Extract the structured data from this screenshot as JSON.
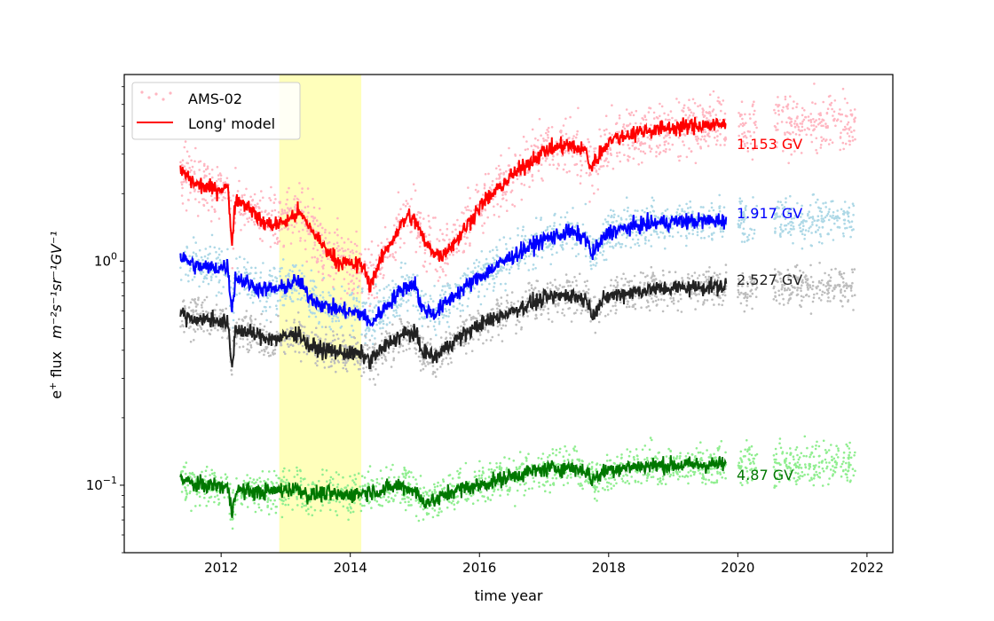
{
  "chart_data": {
    "type": "scatter",
    "xlabel": "time year",
    "ylabel_prefix": "e",
    "ylabel_sup": "+",
    "ylabel_flux": " flux",
    "ylabel_units": "m⁻²s⁻¹sr⁻¹GV⁻¹",
    "x_range": [
      2010.5,
      2022.4
    ],
    "y_range": [
      0.05,
      6.8
    ],
    "y_scale": "log",
    "x_ticks": [
      "2012",
      "2014",
      "2016",
      "2018",
      "2020",
      "2022"
    ],
    "y_ticks": [
      {
        "base": "10",
        "exp": "0",
        "value": 1.0
      },
      {
        "base": "10",
        "exp": "−1",
        "value": 0.1
      }
    ],
    "shaded_region": {
      "x_start": 2012.9,
      "x_end": 2014.17,
      "color": "#ffffbb"
    },
    "legend": {
      "position": "top-left",
      "entries": [
        {
          "label": "AMS-02",
          "kind": "points",
          "color": "#ffb6c1"
        },
        {
          "label": "Long' model",
          "kind": "line",
          "color": "#ff0000"
        }
      ]
    },
    "series": [
      {
        "label": "1.153 GV",
        "point_color": "#ffb6c1",
        "line_color": "#ff0000",
        "label_color": "#ff0000",
        "scatter": 0.13,
        "model": [
          [
            2011.37,
            2.55
          ],
          [
            2011.6,
            2.2
          ],
          [
            2011.9,
            2.1
          ],
          [
            2012.1,
            2.15
          ],
          [
            2012.17,
            1.2
          ],
          [
            2012.22,
            1.9
          ],
          [
            2012.45,
            1.75
          ],
          [
            2012.6,
            1.5
          ],
          [
            2012.8,
            1.45
          ],
          [
            2013.0,
            1.5
          ],
          [
            2013.2,
            1.65
          ],
          [
            2013.35,
            1.45
          ],
          [
            2013.55,
            1.2
          ],
          [
            2013.8,
            1.0
          ],
          [
            2014.0,
            0.97
          ],
          [
            2014.2,
            0.95
          ],
          [
            2014.3,
            0.78
          ],
          [
            2014.5,
            1.05
          ],
          [
            2014.75,
            1.4
          ],
          [
            2014.9,
            1.6
          ],
          [
            2015.05,
            1.45
          ],
          [
            2015.15,
            1.2
          ],
          [
            2015.4,
            1.05
          ],
          [
            2015.7,
            1.3
          ],
          [
            2016.0,
            1.75
          ],
          [
            2016.5,
            2.4
          ],
          [
            2017.0,
            3.1
          ],
          [
            2017.35,
            3.3
          ],
          [
            2017.65,
            3.1
          ],
          [
            2017.72,
            2.6
          ],
          [
            2018.0,
            3.45
          ],
          [
            2018.5,
            3.8
          ],
          [
            2019.0,
            3.95
          ],
          [
            2019.5,
            4.05
          ],
          [
            2019.82,
            4.05
          ]
        ],
        "data_segments": [
          [
            2011.37,
            2019.82
          ],
          [
            2020.0,
            2020.3
          ],
          [
            2020.55,
            2021.82
          ]
        ],
        "tail_level": 4.05
      },
      {
        "label": "1.917 GV",
        "point_color": "#add8e6",
        "line_color": "#0000ff",
        "label_color": "#0000ff",
        "scatter": 0.1,
        "model": [
          [
            2011.37,
            1.05
          ],
          [
            2011.6,
            0.95
          ],
          [
            2011.9,
            0.93
          ],
          [
            2012.1,
            0.95
          ],
          [
            2012.17,
            0.6
          ],
          [
            2012.22,
            0.85
          ],
          [
            2012.6,
            0.75
          ],
          [
            2012.9,
            0.75
          ],
          [
            2013.2,
            0.82
          ],
          [
            2013.35,
            0.7
          ],
          [
            2013.6,
            0.63
          ],
          [
            2013.9,
            0.6
          ],
          [
            2014.2,
            0.58
          ],
          [
            2014.3,
            0.52
          ],
          [
            2014.6,
            0.65
          ],
          [
            2014.8,
            0.75
          ],
          [
            2015.0,
            0.8
          ],
          [
            2015.1,
            0.62
          ],
          [
            2015.3,
            0.58
          ],
          [
            2015.6,
            0.7
          ],
          [
            2016.0,
            0.85
          ],
          [
            2016.5,
            1.05
          ],
          [
            2017.0,
            1.25
          ],
          [
            2017.4,
            1.35
          ],
          [
            2017.68,
            1.25
          ],
          [
            2017.72,
            1.05
          ],
          [
            2018.0,
            1.35
          ],
          [
            2018.5,
            1.45
          ],
          [
            2019.0,
            1.5
          ],
          [
            2019.82,
            1.52
          ]
        ],
        "data_segments": [
          [
            2011.37,
            2019.82
          ],
          [
            2020.0,
            2020.3
          ],
          [
            2020.55,
            2021.82
          ]
        ],
        "tail_level": 1.52
      },
      {
        "label": "2.527 GV",
        "point_color": "#bdbdbd",
        "line_color": "#222222",
        "label_color": "#222222",
        "scatter": 0.09,
        "model": [
          [
            2011.37,
            0.58
          ],
          [
            2011.6,
            0.55
          ],
          [
            2011.9,
            0.55
          ],
          [
            2012.1,
            0.53
          ],
          [
            2012.17,
            0.33
          ],
          [
            2012.22,
            0.5
          ],
          [
            2012.6,
            0.46
          ],
          [
            2012.9,
            0.45
          ],
          [
            2013.2,
            0.48
          ],
          [
            2013.35,
            0.42
          ],
          [
            2013.6,
            0.4
          ],
          [
            2013.9,
            0.39
          ],
          [
            2014.2,
            0.38
          ],
          [
            2014.3,
            0.36
          ],
          [
            2014.6,
            0.43
          ],
          [
            2014.8,
            0.47
          ],
          [
            2015.0,
            0.48
          ],
          [
            2015.1,
            0.4
          ],
          [
            2015.3,
            0.37
          ],
          [
            2015.6,
            0.44
          ],
          [
            2016.0,
            0.52
          ],
          [
            2016.5,
            0.6
          ],
          [
            2017.0,
            0.68
          ],
          [
            2017.4,
            0.71
          ],
          [
            2017.68,
            0.67
          ],
          [
            2017.72,
            0.58
          ],
          [
            2018.0,
            0.7
          ],
          [
            2018.5,
            0.74
          ],
          [
            2019.0,
            0.76
          ],
          [
            2019.82,
            0.77
          ]
        ],
        "data_segments": [
          [
            2011.37,
            2019.82
          ],
          [
            2020.0,
            2020.3
          ],
          [
            2020.55,
            2021.82
          ]
        ],
        "tail_level": 0.77
      },
      {
        "label": "4.87 GV",
        "point_color": "#90ee90",
        "line_color": "#007700",
        "label_color": "#007700",
        "scatter": 0.09,
        "model": [
          [
            2011.37,
            0.107
          ],
          [
            2011.6,
            0.1
          ],
          [
            2011.9,
            0.1
          ],
          [
            2012.1,
            0.098
          ],
          [
            2012.17,
            0.075
          ],
          [
            2012.22,
            0.095
          ],
          [
            2012.6,
            0.093
          ],
          [
            2012.9,
            0.095
          ],
          [
            2013.2,
            0.097
          ],
          [
            2013.35,
            0.09
          ],
          [
            2013.6,
            0.092
          ],
          [
            2013.9,
            0.09
          ],
          [
            2014.2,
            0.093
          ],
          [
            2014.5,
            0.095
          ],
          [
            2014.75,
            0.1
          ],
          [
            2015.0,
            0.095
          ],
          [
            2015.1,
            0.085
          ],
          [
            2015.3,
            0.085
          ],
          [
            2015.6,
            0.095
          ],
          [
            2016.0,
            0.1
          ],
          [
            2016.5,
            0.11
          ],
          [
            2017.0,
            0.118
          ],
          [
            2017.4,
            0.12
          ],
          [
            2017.68,
            0.115
          ],
          [
            2017.72,
            0.105
          ],
          [
            2018.0,
            0.118
          ],
          [
            2018.5,
            0.122
          ],
          [
            2019.0,
            0.123
          ],
          [
            2019.82,
            0.124
          ]
        ],
        "data_segments": [
          [
            2011.37,
            2019.82
          ],
          [
            2020.0,
            2020.3
          ],
          [
            2020.55,
            2021.82
          ]
        ],
        "tail_level": 0.124
      }
    ]
  }
}
